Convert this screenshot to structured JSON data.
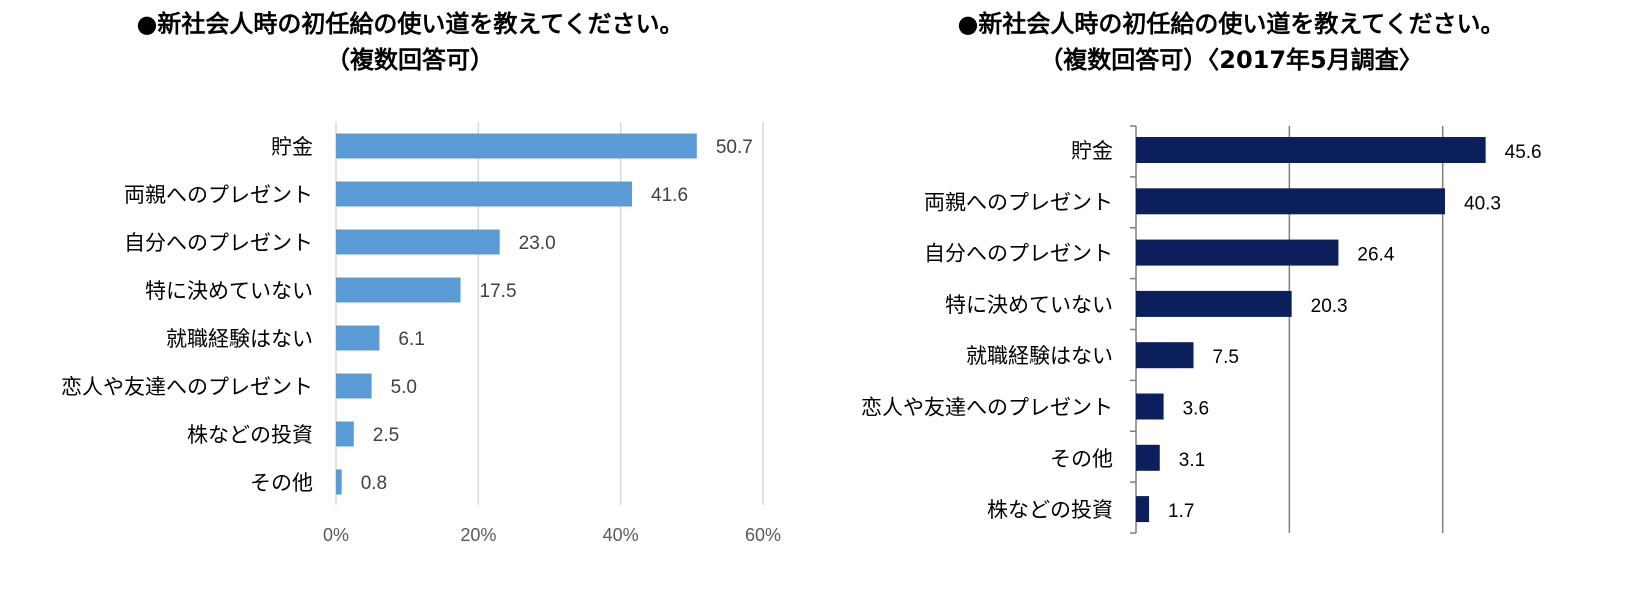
{
  "charts": [
    {
      "title_line1": "●新社会人時の初任給の使い道を教えてください。",
      "title_line2": "（複数回答可）"
    },
    {
      "title_line1": "●新社会人時の初任給の使い道を教えてください。",
      "title_line2": "（複数回答可）〈2017年5月調査〉"
    }
  ],
  "chart_data": [
    {
      "type": "bar",
      "orientation": "horizontal",
      "title": "●新社会人時の初任給の使い道を教えてください。（複数回答可）",
      "categories": [
        "貯金",
        "両親へのプレゼント",
        "自分へのプレゼント",
        "特に決めていない",
        "就職経験はない",
        "恋人や友達へのプレゼント",
        "株などの投資",
        "その他"
      ],
      "values": [
        50.7,
        41.6,
        23.0,
        17.5,
        6.1,
        5.0,
        2.5,
        0.8
      ],
      "value_labels": [
        "50.7",
        "41.6",
        "23.0",
        "17.5",
        "6.1",
        "5.0",
        "2.5",
        "0.8"
      ],
      "xlim": [
        0,
        60
      ],
      "x_ticks": [
        0,
        20,
        40,
        60
      ],
      "x_tick_labels": [
        "0%",
        "20%",
        "40%",
        "60%"
      ],
      "grid": true,
      "bar_color": "#5B9BD5"
    },
    {
      "type": "bar",
      "orientation": "horizontal",
      "title": "●新社会人時の初任給の使い道を教えてください。（複数回答可）〈2017年5月調査〉",
      "categories": [
        "貯金",
        "両親へのプレゼント",
        "自分へのプレゼント",
        "特に決めていない",
        "就職経験はない",
        "恋人や友達へのプレゼント",
        "その他",
        "株などの投資"
      ],
      "values": [
        45.6,
        40.3,
        26.4,
        20.3,
        7.5,
        3.6,
        3.1,
        1.7
      ],
      "value_labels": [
        "45.6",
        "40.3",
        "26.4",
        "20.3",
        "7.5",
        "3.6",
        "3.1",
        "1.7"
      ],
      "xlim": [
        0,
        50
      ],
      "grid": true,
      "bar_color": "#0B1F5C"
    }
  ]
}
